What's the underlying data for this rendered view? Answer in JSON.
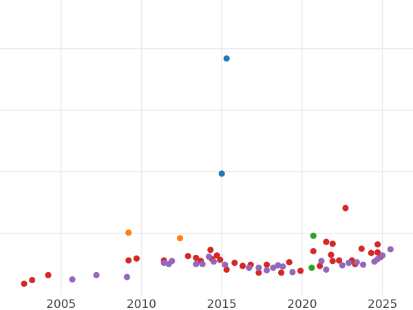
{
  "chart_data": {
    "type": "scatter",
    "title": "",
    "xlabel": "",
    "ylabel": "",
    "xlim": [
      2001.2,
      2026.9
    ],
    "ylim": [
      0,
      4.79
    ],
    "grid": true,
    "x_ticks": [
      "2005",
      "2010",
      "2015",
      "2020",
      "2025"
    ],
    "x_tick_values": [
      2005,
      2010,
      2015,
      2020,
      2025
    ],
    "y_gridlines": [
      1,
      2,
      3,
      4
    ],
    "series": [
      {
        "color": "#d62728",
        "points": [
          [
            2002.7,
            0.18
          ],
          [
            2003.2,
            0.24
          ],
          [
            2004.2,
            0.32
          ],
          [
            2009.2,
            0.56
          ],
          [
            2009.7,
            0.59
          ],
          [
            2011.4,
            0.56
          ],
          [
            2012.9,
            0.63
          ],
          [
            2013.4,
            0.6
          ],
          [
            2013.7,
            0.55
          ],
          [
            2014.3,
            0.73
          ],
          [
            2014.4,
            0.58
          ],
          [
            2014.7,
            0.64
          ],
          [
            2014.9,
            0.57
          ],
          [
            2015.3,
            0.41
          ],
          [
            2015.8,
            0.52
          ],
          [
            2016.3,
            0.47
          ],
          [
            2016.8,
            0.49
          ],
          [
            2017.3,
            0.36
          ],
          [
            2017.8,
            0.49
          ],
          [
            2018.7,
            0.36
          ],
          [
            2019.2,
            0.53
          ],
          [
            2019.9,
            0.39
          ],
          [
            2020.7,
            0.71
          ],
          [
            2021.1,
            0.47
          ],
          [
            2021.5,
            0.86
          ],
          [
            2021.9,
            0.83
          ],
          [
            2021.8,
            0.65
          ],
          [
            2021.9,
            0.55
          ],
          [
            2022.3,
            0.56
          ],
          [
            2022.7,
            1.41
          ],
          [
            2023.1,
            0.56
          ],
          [
            2023.3,
            0.5
          ],
          [
            2023.7,
            0.75
          ],
          [
            2024.3,
            0.68
          ],
          [
            2024.7,
            0.82
          ],
          [
            2024.7,
            0.69
          ],
          [
            2024.9,
            0.62
          ]
        ]
      },
      {
        "color": "#9467bd",
        "points": [
          [
            2005.7,
            0.25
          ],
          [
            2007.2,
            0.32
          ],
          [
            2009.1,
            0.29
          ],
          [
            2011.4,
            0.52
          ],
          [
            2011.7,
            0.5
          ],
          [
            2011.9,
            0.55
          ],
          [
            2013.4,
            0.5
          ],
          [
            2013.8,
            0.5
          ],
          [
            2014.2,
            0.62
          ],
          [
            2014.5,
            0.54
          ],
          [
            2015.2,
            0.49
          ],
          [
            2016.7,
            0.44
          ],
          [
            2017.3,
            0.44
          ],
          [
            2017.8,
            0.4
          ],
          [
            2018.2,
            0.44
          ],
          [
            2018.5,
            0.48
          ],
          [
            2018.8,
            0.46
          ],
          [
            2019.4,
            0.37
          ],
          [
            2021.2,
            0.55
          ],
          [
            2021.5,
            0.41
          ],
          [
            2022.5,
            0.48
          ],
          [
            2022.9,
            0.52
          ],
          [
            2023.4,
            0.53
          ],
          [
            2023.8,
            0.49
          ],
          [
            2024.5,
            0.54
          ],
          [
            2024.7,
            0.58
          ],
          [
            2025.0,
            0.64
          ],
          [
            2025.5,
            0.74
          ]
        ]
      },
      {
        "color": "#ff7f0e",
        "points": [
          [
            2009.2,
            1.01
          ],
          [
            2012.4,
            0.92
          ]
        ]
      },
      {
        "color": "#2ca02c",
        "points": [
          [
            2020.7,
            0.96
          ],
          [
            2020.6,
            0.44
          ]
        ]
      },
      {
        "color": "#1f77b4",
        "points": [
          [
            2015.3,
            3.84
          ],
          [
            2015.0,
            1.97
          ]
        ]
      }
    ]
  }
}
